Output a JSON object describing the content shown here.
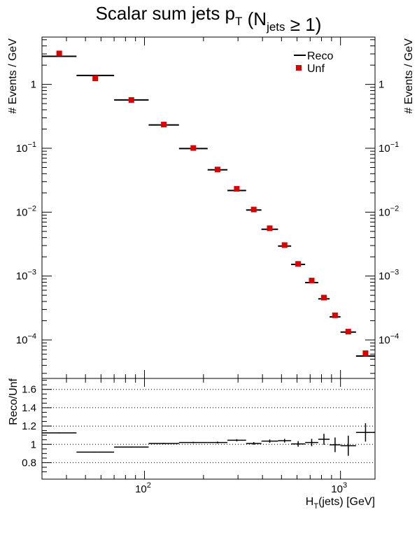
{
  "chart_data": [
    {
      "type": "scatter",
      "title": "Scalar sum jets p_T (N_jets ≥ 1)",
      "ylabel": "# Events / GeV",
      "xlabel": "H_T(jets) [GeV]",
      "xscale": "log",
      "yscale": "log",
      "xlim": [
        30,
        1500
      ],
      "ylim": [
        2.5e-05,
        5.5
      ],
      "y_tick_labels": [
        "1",
        "10^-1",
        "10^-2",
        "10^-3",
        "10^-4"
      ],
      "legend": {
        "position": "top-right",
        "entries": [
          "Reco",
          "Unf"
        ]
      },
      "bins": [
        [
          30,
          45
        ],
        [
          45,
          70
        ],
        [
          70,
          105
        ],
        [
          105,
          150
        ],
        [
          150,
          210
        ],
        [
          210,
          265
        ],
        [
          265,
          330
        ],
        [
          330,
          395
        ],
        [
          395,
          480
        ],
        [
          480,
          560
        ],
        [
          560,
          660
        ],
        [
          660,
          770
        ],
        [
          770,
          880
        ],
        [
          880,
          1000
        ],
        [
          1000,
          1200
        ],
        [
          1200,
          1500
        ]
      ],
      "series": [
        {
          "name": "Reco",
          "style": "horizontal-bars",
          "color": "#000000",
          "values": [
            2.75,
            1.38,
            0.57,
            0.232,
            0.099,
            0.046,
            0.0218,
            0.0108,
            0.0054,
            0.00295,
            0.00152,
            0.00079,
            0.00044,
            0.00023,
            0.000133,
            5.6e-05
          ]
        },
        {
          "name": "Unf",
          "style": "square-markers",
          "color": "#dd0000",
          "values": [
            3.05,
            1.24,
            0.57,
            0.235,
            0.101,
            0.0465,
            0.0232,
            0.011,
            0.0056,
            0.00305,
            0.00155,
            0.00085,
            0.00046,
            0.000243,
            0.000135,
            6.2e-05
          ]
        }
      ]
    },
    {
      "type": "scatter",
      "ylabel": "Reco/Unf",
      "xlabel": "H_T(jets) [GeV]",
      "xscale": "log",
      "xlim": [
        30,
        1500
      ],
      "ylim": [
        0.62,
        1.72
      ],
      "y_ticks": [
        0.8,
        1,
        1.2,
        1.4,
        1.6
      ],
      "x_tick_labels": [
        "10^2",
        "10^3"
      ],
      "grid": "dotted horizontal",
      "series": [
        {
          "name": "Reco/Unf",
          "color": "#000000",
          "values": [
            1.125,
            0.915,
            0.97,
            1.01,
            1.02,
            1.02,
            1.045,
            1.01,
            1.035,
            1.04,
            1.005,
            1.02,
            1.055,
            0.995,
            0.985,
            1.13
          ],
          "errors": [
            0.005,
            0.005,
            0.005,
            0.006,
            0.008,
            0.01,
            0.012,
            0.015,
            0.018,
            0.02,
            0.03,
            0.04,
            0.06,
            0.08,
            0.11,
            0.1
          ]
        }
      ]
    }
  ]
}
